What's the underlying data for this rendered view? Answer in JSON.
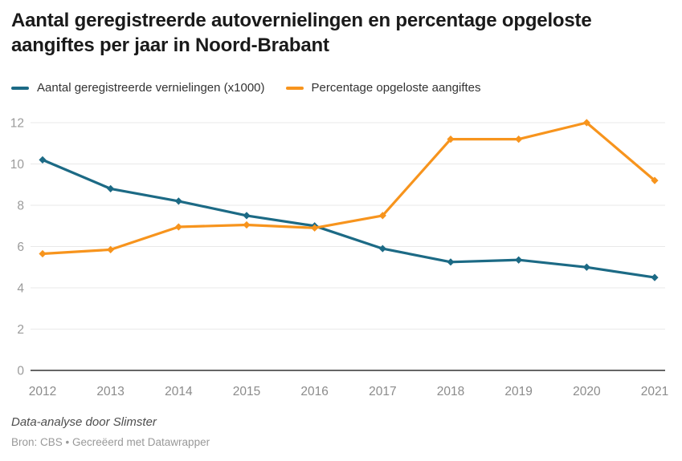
{
  "header": {
    "title": "Aantal geregistreerde autovernielingen en percentage opgeloste aangiftes per jaar in Noord-Brabant"
  },
  "chart_data": {
    "type": "line",
    "x": [
      2012,
      2013,
      2014,
      2015,
      2016,
      2017,
      2018,
      2019,
      2020,
      2021
    ],
    "series": [
      {
        "name": "Aantal geregistreerde vernielingen (x1000)",
        "color": "#1c6a85",
        "values": [
          10.2,
          8.8,
          8.2,
          7.5,
          7.0,
          5.9,
          5.25,
          5.35,
          5.0,
          4.5
        ]
      },
      {
        "name": "Percentage opgeloste aangiftes",
        "color": "#f7941d",
        "values": [
          5.65,
          5.85,
          6.95,
          7.05,
          6.9,
          7.5,
          11.2,
          11.2,
          12.0,
          9.2
        ]
      }
    ],
    "title": "Aantal geregistreerde autovernielingen en percentage opgeloste aangiftes per jaar in Noord-Brabant",
    "xlabel": "",
    "ylabel": "",
    "ylim": [
      0,
      12
    ],
    "yticks": [
      0,
      2,
      4,
      6,
      8,
      10,
      12
    ],
    "grid": true,
    "legend_position": "top",
    "marker": "diamond",
    "colors": {
      "grid_line": "#e9e9e9",
      "baseline": "#333333",
      "y_tick_label": "#9b9b9b",
      "x_tick_label": "#8b8b8b"
    }
  },
  "footer": {
    "byline": "Data-analyse door Slimster",
    "source": "Bron: CBS • Gecreëerd met Datawrapper"
  }
}
